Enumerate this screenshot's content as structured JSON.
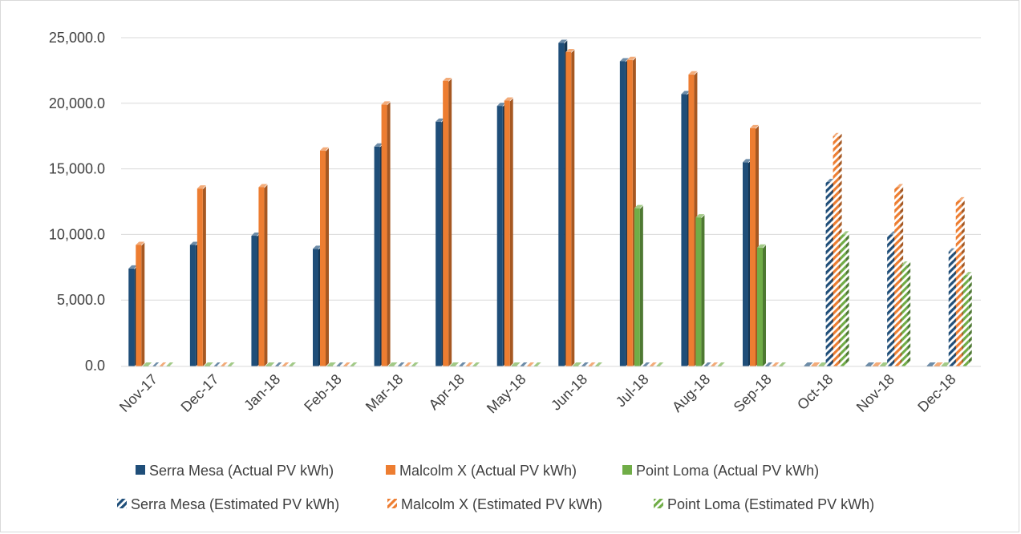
{
  "chart_data": {
    "type": "bar",
    "categories": [
      "Nov-17",
      "Dec-17",
      "Jan-18",
      "Feb-18",
      "Mar-18",
      "Apr-18",
      "May-18",
      "Jun-18",
      "Jul-18",
      "Aug-18",
      "Sep-18",
      "Oct-18",
      "Nov-18",
      "Dec-18"
    ],
    "ylim": [
      0,
      25000
    ],
    "yticks": [
      "0.0",
      "5,000.0",
      "10,000.0",
      "15,000.0",
      "20,000.0",
      "25,000.0"
    ],
    "ytick_values": [
      0,
      5000,
      10000,
      15000,
      20000,
      25000
    ],
    "grid": true,
    "legend_position": "bottom",
    "series": [
      {
        "name": "Serra Mesa (Actual PV kWh)",
        "color": "#1f4e79",
        "pattern": "solid",
        "values": [
          7400,
          9200,
          9900,
          8900,
          16700,
          18600,
          19800,
          24600,
          23200,
          20700,
          15500,
          0,
          0,
          0
        ]
      },
      {
        "name": "Malcolm X (Actual PV kWh)",
        "color": "#ed7d31",
        "pattern": "solid",
        "values": [
          9200,
          13500,
          13600,
          16400,
          19900,
          21700,
          20200,
          23900,
          23300,
          22200,
          18100,
          0,
          0,
          0
        ]
      },
      {
        "name": "Point Loma (Actual PV kWh)",
        "color": "#70ad47",
        "pattern": "solid",
        "values": [
          0,
          0,
          0,
          0,
          0,
          0,
          0,
          0,
          12000,
          11300,
          9000,
          0,
          0,
          0
        ]
      },
      {
        "name": "Serra Mesa (Estimated PV kWh)",
        "color": "#1f4e79",
        "pattern": "hatch",
        "values": [
          0,
          0,
          0,
          0,
          0,
          0,
          0,
          0,
          0,
          0,
          0,
          14000,
          10000,
          8700
        ]
      },
      {
        "name": "Malcolm X (Estimated PV kWh)",
        "color": "#ed7d31",
        "pattern": "hatch",
        "values": [
          0,
          0,
          0,
          0,
          0,
          0,
          0,
          0,
          0,
          0,
          0,
          17500,
          13600,
          12600
        ]
      },
      {
        "name": "Point Loma (Estimated PV kWh)",
        "color": "#70ad47",
        "pattern": "hatch",
        "values": [
          0,
          0,
          0,
          0,
          0,
          0,
          0,
          0,
          0,
          0,
          0,
          10000,
          7700,
          6900
        ]
      }
    ]
  }
}
